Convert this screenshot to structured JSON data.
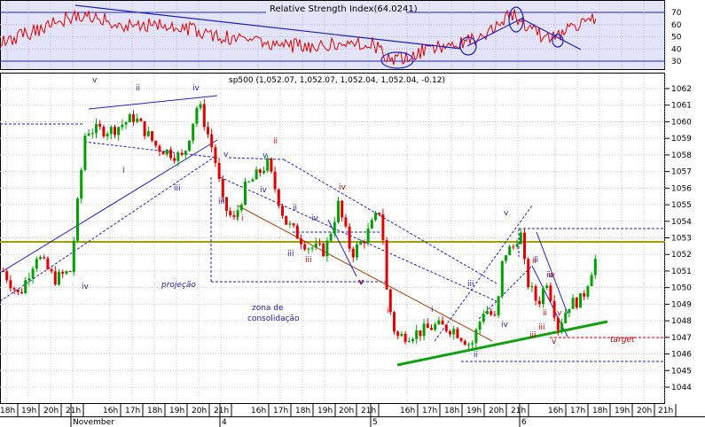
{
  "rsi_panel": {
    "title": "Relative Strength Index(64.0241)",
    "ticks": [
      70,
      60,
      50,
      40,
      30
    ],
    "ylim": [
      25,
      75
    ],
    "levels": [
      70,
      30
    ],
    "bg": "#e4e4f8"
  },
  "chart_data": {
    "type": "candlestick",
    "title": "sp500 (1,052.07, 1,052.07, 1,052.04, 1,052.04, -0.12)",
    "ylim": [
      1043.6,
      1062.9
    ],
    "y_ticks": [
      1062,
      1061,
      1060,
      1059,
      1058,
      1057,
      1056,
      1055,
      1054,
      1053,
      1052,
      1051,
      1050,
      1049,
      1048,
      1047,
      1046,
      1045,
      1044
    ],
    "x_tick_labels": [
      "18h",
      "19h",
      "20h",
      "21h",
      "16h",
      "17h",
      "18h",
      "19h",
      "20h",
      "21h",
      "16h",
      "17h",
      "18h",
      "19h",
      "20h",
      "21h",
      "16h",
      "17h",
      "18h",
      "19h",
      "20h",
      "21h",
      "16h",
      "17h",
      "18h",
      "19h",
      "20h",
      "21h"
    ],
    "date_labels": [
      "November",
      "4",
      "5",
      "6"
    ],
    "grid": true,
    "support_level": 1052.8,
    "target_level": 1047.1,
    "colors": {
      "up": "#00a000",
      "down": "#e00000",
      "trend": "#2020c0",
      "support": "#a0a000",
      "green_line": "#10a010",
      "annot_blue": "#2020a0",
      "annot_red": "#c00000",
      "brown": "#a04000"
    },
    "annotations": {
      "wave_blue": [
        "v",
        "ii",
        "iv",
        "i",
        "iii",
        "iv",
        "v",
        "i",
        "iii",
        "v",
        "iv",
        "ii",
        "iii",
        "iv",
        "v",
        "iii",
        "ii",
        "iv",
        "v",
        "ii",
        "i",
        "iv"
      ],
      "wave_red": [
        "i",
        "ii",
        "iii",
        "iv",
        "ii",
        "iii",
        "iv",
        "v",
        "v",
        "i",
        "ii",
        "iii",
        "v"
      ],
      "projection": "projeção",
      "zone_line1": "zona de",
      "zone_line2": "consolidação",
      "target": "target"
    }
  }
}
